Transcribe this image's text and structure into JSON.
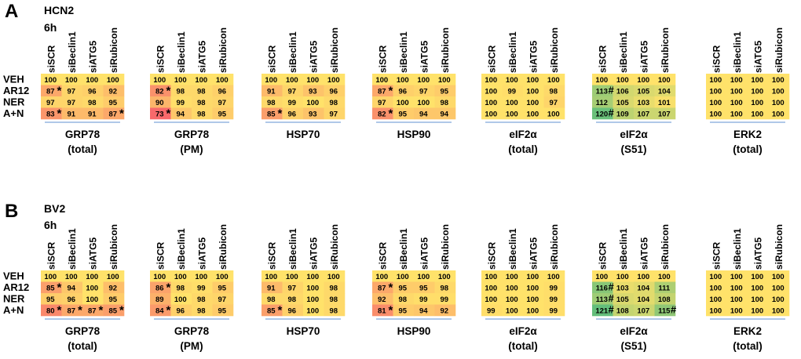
{
  "colors": {
    "c100": "#FFE26A",
    "dark_green": "#63BE7B",
    "red": "#F8696B",
    "line": "#7FA7DA",
    "text": "#000000"
  },
  "column_headers": [
    "siSCR",
    "siBeclin1",
    "siATG5",
    "siRubicon"
  ],
  "row_labels": [
    "VEH",
    "AR12",
    "NER",
    "A+N"
  ],
  "chart_data": [
    {
      "type": "heatmap",
      "panel_label": "A",
      "cell_line": "HCN2",
      "timepoint": "6h",
      "columns": [
        "siSCR",
        "siBeclin1",
        "siATG5",
        "siRubicon"
      ],
      "rows": [
        "VEH",
        "AR12",
        "NER",
        "A+N"
      ],
      "color_scale": {
        "min_value": 73,
        "mid_value": 100,
        "max_value": 121,
        "min_color": "#F8696B",
        "mid_color": "#FFE26A",
        "max_color": "#63BE7B"
      },
      "blocks": [
        {
          "name": "GRP78",
          "subtitle": "(total)",
          "values": [
            [
              100,
              100,
              100,
              100
            ],
            [
              87,
              97,
              96,
              92
            ],
            [
              97,
              97,
              98,
              95
            ],
            [
              83,
              91,
              91,
              87
            ]
          ],
          "marks": [
            [
              1,
              0,
              "*"
            ],
            [
              3,
              0,
              "*"
            ],
            [
              3,
              3,
              "*"
            ]
          ]
        },
        {
          "name": "GRP78",
          "subtitle": "(PM)",
          "values": [
            [
              100,
              100,
              100,
              100
            ],
            [
              82,
              98,
              98,
              96
            ],
            [
              90,
              99,
              98,
              97
            ],
            [
              73,
              94,
              98,
              95
            ]
          ],
          "marks": [
            [
              1,
              0,
              "*"
            ],
            [
              3,
              0,
              "*"
            ]
          ]
        },
        {
          "name": "HSP70",
          "subtitle": "",
          "values": [
            [
              100,
              100,
              100,
              100
            ],
            [
              91,
              97,
              93,
              96
            ],
            [
              98,
              99,
              100,
              98
            ],
            [
              85,
              96,
              93,
              97
            ]
          ],
          "marks": [
            [
              3,
              0,
              "*"
            ]
          ]
        },
        {
          "name": "HSP90",
          "subtitle": "",
          "values": [
            [
              100,
              100,
              100,
              100
            ],
            [
              87,
              96,
              97,
              95
            ],
            [
              97,
              100,
              100,
              98
            ],
            [
              82,
              95,
              94,
              94
            ]
          ],
          "marks": [
            [
              1,
              0,
              "*"
            ],
            [
              3,
              0,
              "*"
            ]
          ]
        },
        {
          "name": "eIF2α",
          "subtitle": "(total)",
          "values": [
            [
              100,
              100,
              100,
              100
            ],
            [
              100,
              99,
              100,
              98
            ],
            [
              100,
              100,
              100,
              97
            ],
            [
              100,
              100,
              100,
              100
            ]
          ],
          "marks": []
        },
        {
          "name": "eIF2α",
          "subtitle": "(S51)",
          "values": [
            [
              100,
              100,
              100,
              100
            ],
            [
              113,
              106,
              105,
              104
            ],
            [
              112,
              105,
              103,
              101
            ],
            [
              120,
              109,
              107,
              107
            ]
          ],
          "marks": [
            [
              1,
              0,
              "#"
            ],
            [
              3,
              0,
              "#"
            ]
          ]
        },
        {
          "name": "ERK2",
          "subtitle": "(total)",
          "values": [
            [
              100,
              100,
              100,
              100
            ],
            [
              100,
              100,
              100,
              100
            ],
            [
              100,
              100,
              100,
              100
            ],
            [
              100,
              100,
              100,
              100
            ]
          ],
          "marks": []
        }
      ]
    },
    {
      "type": "heatmap",
      "panel_label": "B",
      "cell_line": "BV2",
      "timepoint": "6h",
      "columns": [
        "siSCR",
        "siBeclin1",
        "siATG5",
        "siRubicon"
      ],
      "rows": [
        "VEH",
        "AR12",
        "NER",
        "A+N"
      ],
      "color_scale": {
        "min_value": 73,
        "mid_value": 100,
        "max_value": 121,
        "min_color": "#F8696B",
        "mid_color": "#FFE26A",
        "max_color": "#63BE7B"
      },
      "blocks": [
        {
          "name": "GRP78",
          "subtitle": "(total)",
          "values": [
            [
              100,
              100,
              100,
              100
            ],
            [
              85,
              94,
              100,
              92
            ],
            [
              95,
              96,
              100,
              95
            ],
            [
              80,
              87,
              87,
              85
            ]
          ],
          "marks": [
            [
              1,
              0,
              "*"
            ],
            [
              3,
              0,
              "*"
            ],
            [
              3,
              1,
              "*"
            ],
            [
              3,
              2,
              "*"
            ],
            [
              3,
              3,
              "*"
            ]
          ]
        },
        {
          "name": "GRP78",
          "subtitle": "(PM)",
          "values": [
            [
              100,
              100,
              100,
              100
            ],
            [
              86,
              98,
              99,
              95
            ],
            [
              89,
              100,
              98,
              97
            ],
            [
              84,
              96,
              98,
              95
            ]
          ],
          "marks": [
            [
              1,
              0,
              "*"
            ],
            [
              3,
              0,
              "*"
            ]
          ]
        },
        {
          "name": "HSP70",
          "subtitle": "",
          "values": [
            [
              100,
              100,
              100,
              100
            ],
            [
              91,
              97,
              100,
              98
            ],
            [
              98,
              98,
              100,
              98
            ],
            [
              85,
              96,
              100,
              98
            ]
          ],
          "marks": [
            [
              3,
              0,
              "*"
            ]
          ]
        },
        {
          "name": "HSP90",
          "subtitle": "",
          "values": [
            [
              100,
              100,
              100,
              100
            ],
            [
              87,
              95,
              95,
              98
            ],
            [
              92,
              98,
              99,
              99
            ],
            [
              81,
              95,
              94,
              92
            ]
          ],
          "marks": [
            [
              1,
              0,
              "*"
            ],
            [
              3,
              0,
              "*"
            ]
          ]
        },
        {
          "name": "eIF2α",
          "subtitle": "(total)",
          "values": [
            [
              100,
              100,
              100,
              100
            ],
            [
              100,
              100,
              100,
              99
            ],
            [
              100,
              100,
              100,
              99
            ],
            [
              99,
              100,
              100,
              99
            ]
          ],
          "marks": []
        },
        {
          "name": "eIF2α",
          "subtitle": "(S51)",
          "values": [
            [
              100,
              100,
              100,
              100
            ],
            [
              116,
              103,
              104,
              111
            ],
            [
              113,
              105,
              104,
              108
            ],
            [
              121,
              108,
              107,
              115
            ]
          ],
          "marks": [
            [
              1,
              0,
              "#"
            ],
            [
              2,
              0,
              "#"
            ],
            [
              3,
              0,
              "#"
            ],
            [
              3,
              3,
              "#"
            ]
          ]
        },
        {
          "name": "ERK2",
          "subtitle": "(total)",
          "values": [
            [
              100,
              100,
              100,
              100
            ],
            [
              100,
              100,
              100,
              100
            ],
            [
              100,
              100,
              100,
              100
            ],
            [
              100,
              100,
              100,
              100
            ]
          ],
          "marks": []
        }
      ]
    }
  ]
}
